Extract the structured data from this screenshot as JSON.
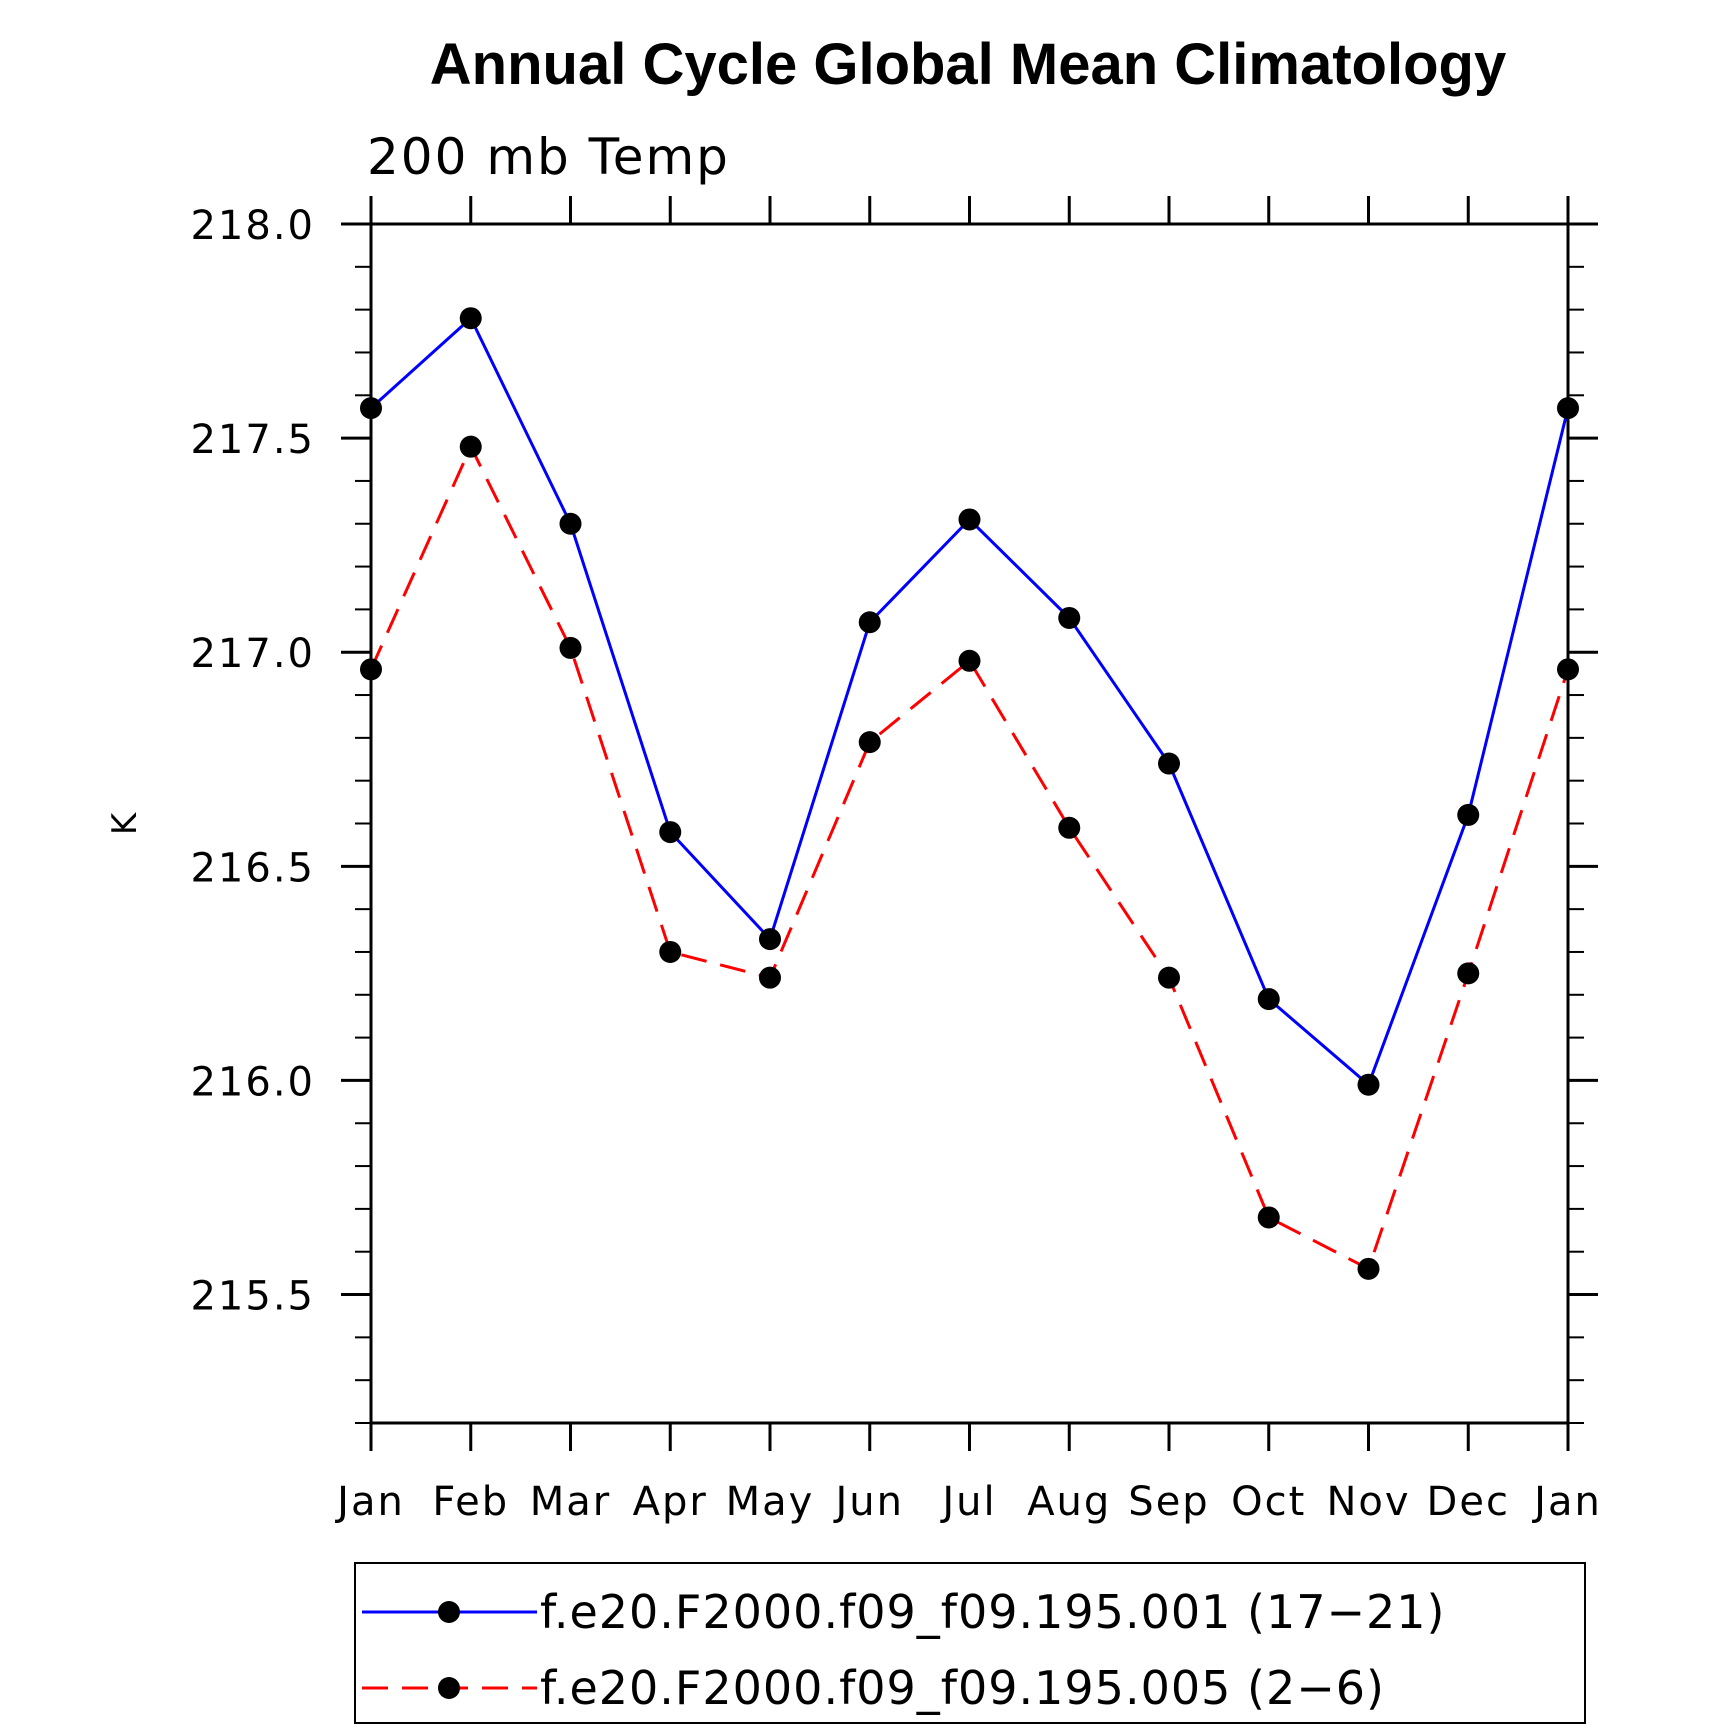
{
  "chart_data": {
    "type": "line",
    "title": "Annual Cycle Global Mean Climatology",
    "subtitle": "200 mb Temp",
    "xlabel": "",
    "ylabel": "K",
    "categories": [
      "Jan",
      "Feb",
      "Mar",
      "Apr",
      "May",
      "Jun",
      "Jul",
      "Aug",
      "Sep",
      "Oct",
      "Nov",
      "Dec",
      "Jan"
    ],
    "ylim": [
      215.2,
      218.0
    ],
    "yticks": [
      "215.5",
      "216.0",
      "216.5",
      "217.0",
      "217.5",
      "218.0"
    ],
    "grid": false,
    "legend_position": "bottom",
    "series": [
      {
        "name": "f.e20.F2000.f09_f09.195.001 (17−21)",
        "color": "#0000ff",
        "dash": "solid",
        "values": [
          217.57,
          217.78,
          217.3,
          216.58,
          216.33,
          217.07,
          217.31,
          217.08,
          216.74,
          216.19,
          215.99,
          216.62,
          217.57
        ]
      },
      {
        "name": "f.e20.F2000.f09_f09.195.005 (2−6)",
        "color": "#ff0000",
        "dash": "dashed",
        "values": [
          216.96,
          217.48,
          217.01,
          216.3,
          216.24,
          216.79,
          216.98,
          216.59,
          216.24,
          215.68,
          215.56,
          216.25,
          216.96
        ]
      }
    ]
  }
}
